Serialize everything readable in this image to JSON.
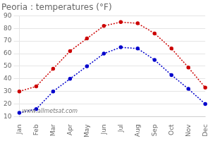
{
  "chart_data": {
    "type": "line",
    "title": "Peoria : temperatures (°F)",
    "categories": [
      "Jan",
      "Feb",
      "Mar",
      "Apr",
      "May",
      "Jun",
      "Jul",
      "Aug",
      "Sep",
      "Oct",
      "Nov",
      "Dec"
    ],
    "series": [
      {
        "color": "#cc0000",
        "values": [
          30,
          34,
          48,
          62,
          72,
          82,
          85,
          84,
          76,
          64,
          49,
          33
        ]
      },
      {
        "color": "#0000cc",
        "values": [
          13,
          16,
          30,
          40,
          50,
          60,
          65,
          64,
          55,
          43,
          32,
          20
        ]
      }
    ],
    "marker": "circle",
    "line_style": "dotted",
    "ylim": [
      10,
      90
    ],
    "yticks": [
      10,
      20,
      30,
      40,
      50,
      60,
      70,
      80,
      90
    ],
    "grid": "y",
    "annotations": [
      "www.allmetsat.com"
    ]
  }
}
